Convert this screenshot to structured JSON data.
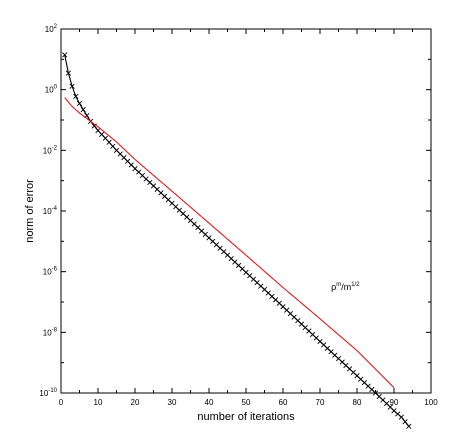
{
  "chart_data": {
    "type": "line",
    "xlabel": "number of iterations",
    "ylabel": "norm of error",
    "xlim": [
      0,
      100
    ],
    "ylim_exponent": [
      -10,
      2
    ],
    "yscale": "log",
    "x_ticks": [
      "0",
      "10",
      "20",
      "30",
      "40",
      "50",
      "60",
      "70",
      "80",
      "90",
      "100"
    ],
    "y_ticks": [
      {
        "base": "10",
        "exp": "2"
      },
      {
        "base": "10",
        "exp": "0"
      },
      {
        "base": "10",
        "exp": "-2"
      },
      {
        "base": "10",
        "exp": "-4"
      },
      {
        "base": "10",
        "exp": "-6"
      },
      {
        "base": "10",
        "exp": "-8"
      },
      {
        "base": "10",
        "exp": "-10"
      }
    ],
    "grid": false,
    "series": [
      {
        "color": "#000000",
        "marker": "x",
        "x": [
          1,
          2,
          3,
          4,
          5,
          6,
          7,
          8,
          10,
          12,
          15,
          20,
          30,
          40,
          50,
          60,
          70,
          80,
          85,
          88,
          90,
          92,
          94
        ],
        "y": [
          14,
          3.5,
          1.3,
          0.6,
          0.35,
          0.22,
          0.14,
          0.09,
          0.045,
          0.025,
          0.01,
          0.0025,
          0.00018,
          1.3e-05,
          9.5e-07,
          7e-08,
          5e-09,
          3.7e-10,
          1e-10,
          4.5e-11,
          2.6e-11,
          1.6e-11,
          8e-12
        ]
      },
      {
        "color": "#e41a1c",
        "marker": "none",
        "x": [
          1,
          3,
          5,
          8,
          10,
          15,
          20,
          30,
          40,
          50,
          60,
          70,
          80,
          90
        ],
        "y": [
          0.55,
          0.28,
          0.17,
          0.09,
          0.06,
          0.019,
          0.005,
          0.00045,
          4e-05,
          3.5e-06,
          3e-07,
          2.8e-08,
          2.5e-09,
          1.5e-10
        ]
      }
    ],
    "annotation": {
      "text_base": "ρ",
      "text_sup1": "m",
      "text_mid": "/m",
      "text_sup2": "1/2",
      "x": 73,
      "y": 2.5e-07
    }
  }
}
